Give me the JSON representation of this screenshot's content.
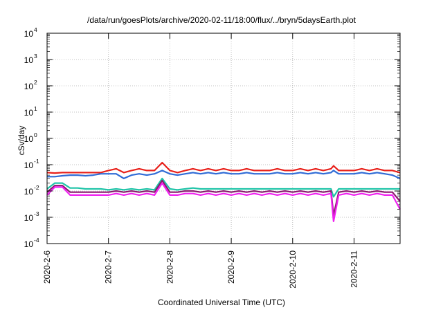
{
  "chart_data": {
    "type": "line",
    "title": "/data/run/goesPlots/archive/2020-02-11/18:00/flux/../bryn/5daysEarth.plot",
    "xlabel": "Coordinated Universal Time (UTC)",
    "ylabel": "cSv/day",
    "x_ticks": [
      "2020-2-6",
      "2020-2-7",
      "2020-2-8",
      "2020-2-9",
      "2020-2-10",
      "2020-2-11"
    ],
    "xlim": [
      "2020-02-06T00:00",
      "2020-02-11T18:00"
    ],
    "y_scale": "log",
    "ylim": [
      0.0001,
      10000
    ],
    "y_ticks": [
      {
        "base": "10",
        "exp": "-4",
        "value": 0.0001
      },
      {
        "base": "10",
        "exp": "-3",
        "value": 0.001
      },
      {
        "base": "10",
        "exp": "-2",
        "value": 0.01
      },
      {
        "base": "10",
        "exp": "-1",
        "value": 0.1
      },
      {
        "base": "10",
        "exp": "0",
        "value": 1
      },
      {
        "base": "10",
        "exp": "1",
        "value": 10
      },
      {
        "base": "10",
        "exp": "2",
        "value": 100
      },
      {
        "base": "10",
        "exp": "3",
        "value": 1000
      },
      {
        "base": "10",
        "exp": "4",
        "value": 10000
      }
    ],
    "grid": true,
    "legend": "none",
    "x": [
      "2020-02-06T00:00",
      "2020-02-06T03:00",
      "2020-02-06T06:00",
      "2020-02-06T09:00",
      "2020-02-06T12:00",
      "2020-02-06T15:00",
      "2020-02-06T18:00",
      "2020-02-06T21:00",
      "2020-02-07T00:00",
      "2020-02-07T03:00",
      "2020-02-07T06:00",
      "2020-02-07T09:00",
      "2020-02-07T12:00",
      "2020-02-07T15:00",
      "2020-02-07T18:00",
      "2020-02-07T21:00",
      "2020-02-08T00:00",
      "2020-02-08T03:00",
      "2020-02-08T06:00",
      "2020-02-08T09:00",
      "2020-02-08T12:00",
      "2020-02-08T15:00",
      "2020-02-08T18:00",
      "2020-02-08T21:00",
      "2020-02-09T00:00",
      "2020-02-09T03:00",
      "2020-02-09T06:00",
      "2020-02-09T09:00",
      "2020-02-09T12:00",
      "2020-02-09T15:00",
      "2020-02-09T18:00",
      "2020-02-09T21:00",
      "2020-02-10T00:00",
      "2020-02-10T03:00",
      "2020-02-10T06:00",
      "2020-02-10T09:00",
      "2020-02-10T12:00",
      "2020-02-10T15:00",
      "2020-02-10T16:00",
      "2020-02-10T18:00",
      "2020-02-10T21:00",
      "2020-02-11T00:00",
      "2020-02-11T03:00",
      "2020-02-11T06:00",
      "2020-02-11T09:00",
      "2020-02-11T12:00",
      "2020-02-11T15:00",
      "2020-02-11T18:00"
    ],
    "series": [
      {
        "color": "#e8201a",
        "values": [
          0.05,
          0.048,
          0.05,
          0.05,
          0.05,
          0.05,
          0.05,
          0.05,
          0.06,
          0.07,
          0.05,
          0.06,
          0.07,
          0.06,
          0.06,
          0.12,
          0.06,
          0.05,
          0.06,
          0.07,
          0.06,
          0.07,
          0.06,
          0.07,
          0.06,
          0.06,
          0.07,
          0.06,
          0.06,
          0.06,
          0.07,
          0.06,
          0.06,
          0.07,
          0.06,
          0.07,
          0.06,
          0.07,
          0.09,
          0.06,
          0.06,
          0.06,
          0.07,
          0.06,
          0.07,
          0.06,
          0.06,
          0.05
        ]
      },
      {
        "color": "#2f6bd6",
        "values": [
          0.035,
          0.035,
          0.038,
          0.04,
          0.04,
          0.038,
          0.04,
          0.045,
          0.045,
          0.045,
          0.03,
          0.04,
          0.045,
          0.04,
          0.045,
          0.06,
          0.045,
          0.04,
          0.045,
          0.05,
          0.045,
          0.05,
          0.045,
          0.05,
          0.045,
          0.045,
          0.05,
          0.045,
          0.045,
          0.045,
          0.05,
          0.045,
          0.045,
          0.05,
          0.045,
          0.05,
          0.045,
          0.05,
          0.06,
          0.045,
          0.045,
          0.045,
          0.05,
          0.045,
          0.05,
          0.045,
          0.04,
          0.03
        ]
      },
      {
        "color": "#20c4a8",
        "values": [
          0.012,
          0.02,
          0.02,
          0.013,
          0.013,
          0.012,
          0.012,
          0.012,
          0.011,
          0.012,
          0.011,
          0.012,
          0.011,
          0.012,
          0.011,
          0.03,
          0.012,
          0.011,
          0.012,
          0.013,
          0.012,
          0.012,
          0.012,
          0.012,
          0.012,
          0.012,
          0.012,
          0.012,
          0.012,
          0.012,
          0.012,
          0.012,
          0.012,
          0.012,
          0.012,
          0.012,
          0.012,
          0.012,
          0.006,
          0.012,
          0.012,
          0.012,
          0.012,
          0.012,
          0.012,
          0.012,
          0.012,
          0.012
        ]
      },
      {
        "color": "#8a1a6e",
        "values": [
          0.009,
          0.016,
          0.016,
          0.009,
          0.009,
          0.009,
          0.009,
          0.009,
          0.009,
          0.01,
          0.009,
          0.01,
          0.009,
          0.01,
          0.009,
          0.025,
          0.009,
          0.009,
          0.01,
          0.01,
          0.009,
          0.01,
          0.009,
          0.01,
          0.009,
          0.01,
          0.009,
          0.01,
          0.009,
          0.01,
          0.009,
          0.01,
          0.009,
          0.01,
          0.009,
          0.01,
          0.009,
          0.01,
          0.0012,
          0.009,
          0.01,
          0.009,
          0.01,
          0.009,
          0.01,
          0.009,
          0.009,
          0.004
        ]
      },
      {
        "color": "#f020f0",
        "values": [
          0.007,
          0.014,
          0.014,
          0.007,
          0.007,
          0.007,
          0.007,
          0.007,
          0.007,
          0.008,
          0.007,
          0.008,
          0.007,
          0.008,
          0.007,
          0.02,
          0.007,
          0.007,
          0.008,
          0.008,
          0.007,
          0.008,
          0.007,
          0.008,
          0.007,
          0.008,
          0.007,
          0.008,
          0.007,
          0.008,
          0.007,
          0.008,
          0.007,
          0.008,
          0.007,
          0.008,
          0.007,
          0.008,
          0.0007,
          0.007,
          0.008,
          0.007,
          0.008,
          0.007,
          0.008,
          0.007,
          0.007,
          0.002
        ]
      }
    ]
  }
}
